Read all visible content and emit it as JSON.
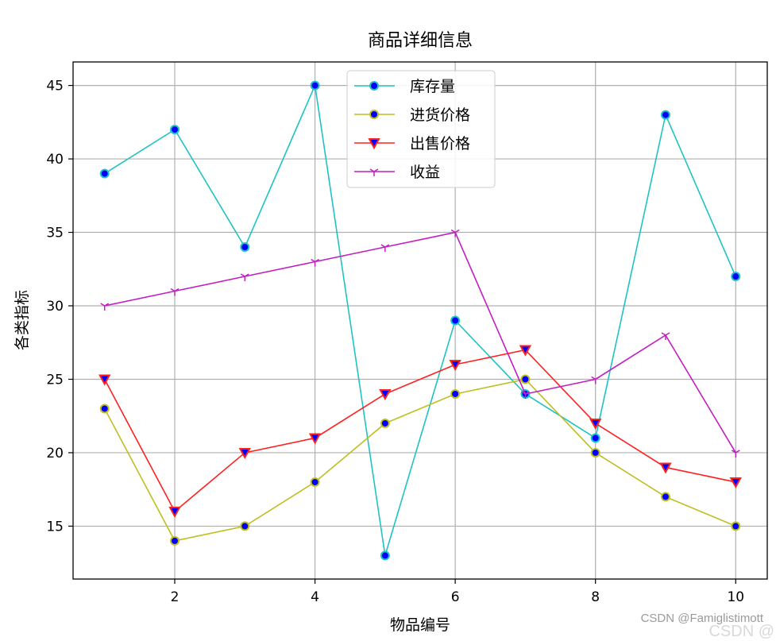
{
  "chart_data": {
    "type": "line",
    "title": "商品详细信息",
    "xlabel": "物品编号",
    "ylabel": "各类指标",
    "x": [
      1,
      2,
      3,
      4,
      5,
      6,
      7,
      8,
      9,
      10
    ],
    "xticks": [
      2,
      4,
      6,
      8,
      10
    ],
    "yticks": [
      15,
      20,
      25,
      30,
      35,
      40,
      45
    ],
    "xlim": [
      0.55,
      10.45
    ],
    "ylim": [
      11.4,
      46.6
    ],
    "grid": true,
    "legend_position": "upper center",
    "series": [
      {
        "name": "库存量",
        "color": "#1fc3c3",
        "marker": "o",
        "marker_face": "#0000ff",
        "values": [
          39,
          42,
          34,
          45,
          13,
          29,
          24,
          21,
          43,
          32
        ]
      },
      {
        "name": "进货价格",
        "color": "#bfbf1f",
        "marker": "o",
        "marker_face": "#0000ff",
        "values": [
          23,
          14,
          15,
          18,
          22,
          24,
          25,
          20,
          17,
          15
        ]
      },
      {
        "name": "出售价格",
        "color": "#ff2020",
        "marker": "v",
        "marker_face": "#0000ff",
        "values": [
          25,
          16,
          20,
          21,
          24,
          26,
          27,
          22,
          19,
          18
        ]
      },
      {
        "name": "收益",
        "color": "#c21fc2",
        "marker": "1",
        "marker_face": "#c21fc2",
        "values": [
          30,
          31,
          32,
          33,
          34,
          35,
          24,
          25,
          28,
          20
        ]
      }
    ]
  },
  "watermark": {
    "text": "CSDN @Famiglistimott",
    "logo": "CSDN @"
  }
}
